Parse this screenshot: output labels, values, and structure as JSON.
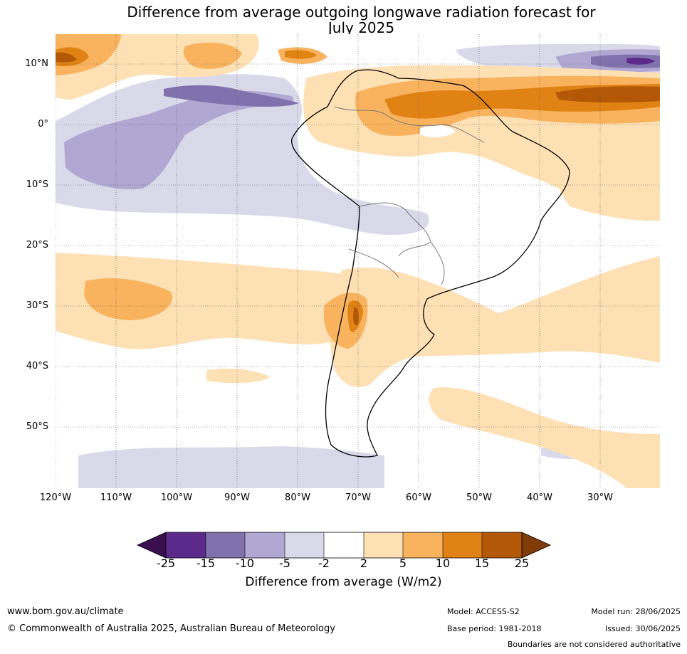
{
  "title_line1": "Difference from average outgoing longwave radiation forecast for",
  "title_line2": "July 2025",
  "lat_labels": [
    "10°N",
    "0°",
    "10°S",
    "20°S",
    "30°S",
    "40°S",
    "50°S"
  ],
  "lon_labels": [
    "120°W",
    "110°W",
    "100°W",
    "90°W",
    "80°W",
    "70°W",
    "60°W",
    "50°W",
    "40°W",
    "30°W"
  ],
  "colorbar": {
    "tick_labels": [
      "-25",
      "-15",
      "-10",
      "-5",
      "-2",
      "2",
      "5",
      "10",
      "15",
      "25"
    ],
    "label": "Difference from average (W/m2)",
    "colors": [
      "#3b0f4f",
      "#5c2a8a",
      "#8172ad",
      "#b0a8d2",
      "#d9d9ea",
      "#ffffff",
      "#fee0b5",
      "#f9b35e",
      "#e08214",
      "#b35806",
      "#7f3b08"
    ]
  },
  "footer": {
    "site": "www.bom.gov.au/climate",
    "copyright": "© Commonwealth of Australia 2025, Australian Bureau of Meteorology",
    "model": "Model: ACCESS-S2",
    "base_period": "Base period: 1981-2018",
    "model_run": "Model run: 28/06/2025",
    "issued": "Issued: 30/06/2025",
    "boundaries_note": "Boundaries are not considered authoritative"
  }
}
